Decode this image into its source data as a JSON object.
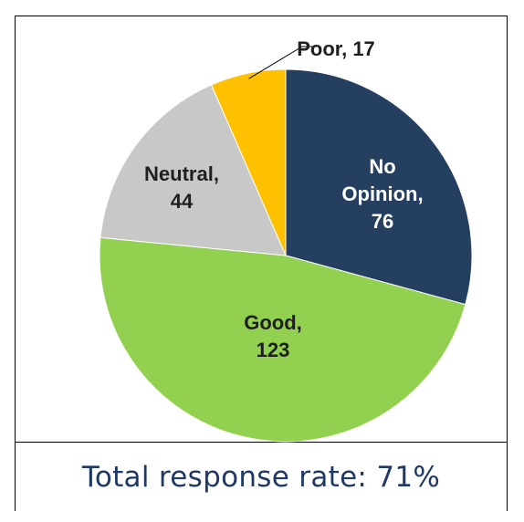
{
  "chart_data": {
    "type": "pie",
    "title": "",
    "slices": [
      {
        "category": "No Opinion",
        "value": 76,
        "label_lines": [
          "No",
          "Opinion,",
          "76"
        ],
        "color": "#243f60",
        "label_color": "#ffffff"
      },
      {
        "category": "Good",
        "value": 123,
        "label_lines": [
          "Good,",
          "123"
        ],
        "color": "#92d050",
        "label_color": "#1f1f1f"
      },
      {
        "category": "Neutral",
        "value": 44,
        "label_lines": [
          "Neutral,",
          "44"
        ],
        "color": "#c8c8c8",
        "label_color": "#1f1f1f"
      },
      {
        "category": "Poor",
        "value": 17,
        "label_lines": [
          "Poor, 17"
        ],
        "color": "#ffc000",
        "label_color": "#1f1f1f"
      }
    ],
    "legend": "none",
    "data_labels": "category and value"
  },
  "caption": "Total response rate: 71%"
}
